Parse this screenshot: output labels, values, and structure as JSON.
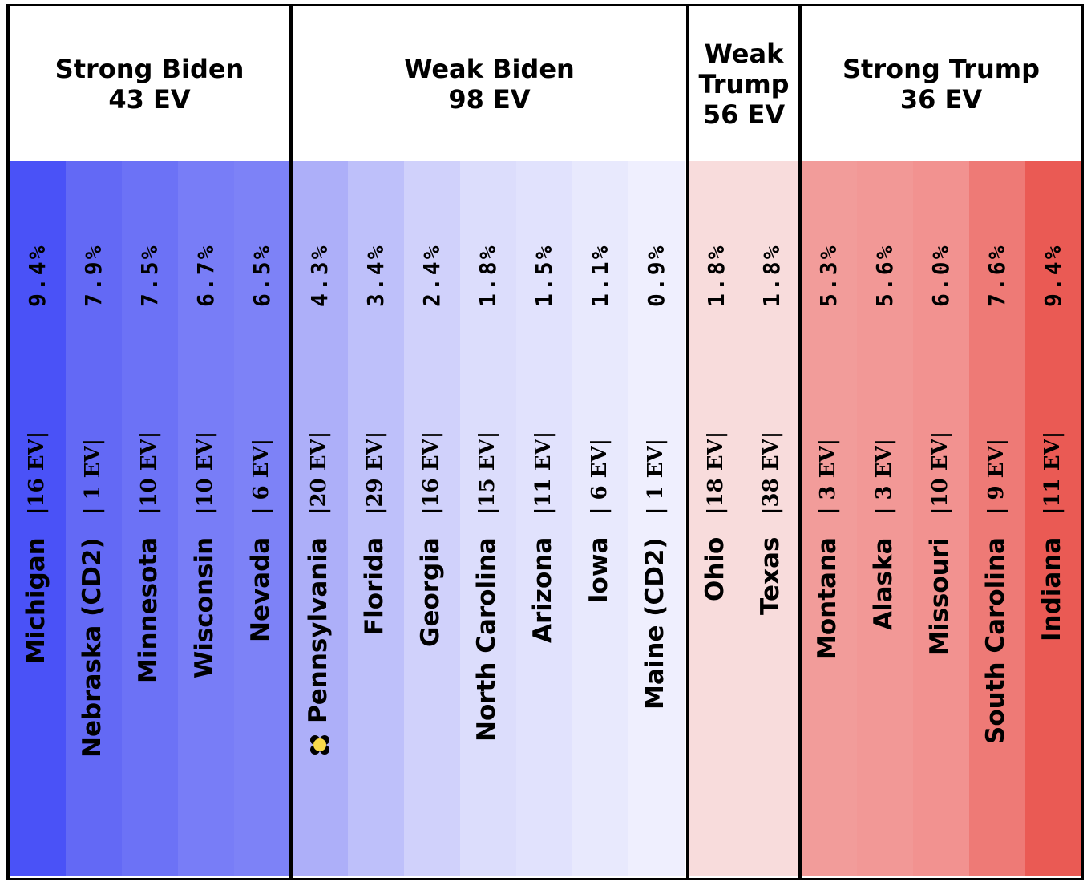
{
  "chart_data": {
    "type": "bar",
    "groups": [
      {
        "label": "Strong Biden",
        "ev_label": "43 EV",
        "states": [
          {
            "name": "Michigan",
            "ev": "16 EV",
            "margin": "9.4%",
            "margin_value": 9.4,
            "color": "#4a52f7"
          },
          {
            "name": "Nebraska (CD2)",
            "ev": " 1 EV",
            "margin": "7.9%",
            "margin_value": 7.9,
            "color": "#6369f5"
          },
          {
            "name": "Minnesota",
            "ev": "10 EV",
            "margin": "7.5%",
            "margin_value": 7.5,
            "color": "#6c72f6"
          },
          {
            "name": "Wisconsin",
            "ev": "10 EV",
            "margin": "6.7%",
            "margin_value": 6.7,
            "color": "#787df7"
          },
          {
            "name": "Nevada",
            "ev": " 6 EV",
            "margin": "6.5%",
            "margin_value": 6.5,
            "color": "#7d82f7"
          }
        ]
      },
      {
        "label": "Weak Biden",
        "ev_label": "98 EV",
        "states": [
          {
            "name": "Pennsylvania",
            "ev": "20 EV",
            "margin": "4.3%",
            "margin_value": 4.3,
            "color": "#adaff9",
            "tipping_point": true
          },
          {
            "name": "Florida",
            "ev": "29 EV",
            "margin": "3.4%",
            "margin_value": 3.4,
            "color": "#bec0fa"
          },
          {
            "name": "Georgia",
            "ev": "16 EV",
            "margin": "2.4%",
            "margin_value": 2.4,
            "color": "#d0d1fb"
          },
          {
            "name": "North Carolina",
            "ev": "15 EV",
            "margin": "1.8%",
            "margin_value": 1.8,
            "color": "#dcddfc"
          },
          {
            "name": "Arizona",
            "ev": "11 EV",
            "margin": "1.5%",
            "margin_value": 1.5,
            "color": "#e1e2fd"
          },
          {
            "name": "Iowa",
            "ev": " 6 EV",
            "margin": "1.1%",
            "margin_value": 1.1,
            "color": "#e8e9fd"
          },
          {
            "name": "Maine (CD2)",
            "ev": " 1 EV",
            "margin": "0.9%",
            "margin_value": 0.9,
            "color": "#efeffe"
          }
        ]
      },
      {
        "label": "Weak Trump",
        "ev_label": "56 EV",
        "states": [
          {
            "name": "Ohio",
            "ev": "18 EV",
            "margin": "1.8%",
            "margin_value": 1.8,
            "color": "#f8dcdc"
          },
          {
            "name": "Texas",
            "ev": "38 EV",
            "margin": "1.8%",
            "margin_value": 1.8,
            "color": "#f8dcdc"
          }
        ]
      },
      {
        "label": "Strong Trump",
        "ev_label": "36 EV",
        "states": [
          {
            "name": "Montana",
            "ev": " 3 EV",
            "margin": "5.3%",
            "margin_value": 5.3,
            "color": "#f29c9a"
          },
          {
            "name": "Alaska",
            "ev": " 3 EV",
            "margin": "5.6%",
            "margin_value": 5.6,
            "color": "#f29896"
          },
          {
            "name": "Missouri",
            "ev": "10 EV",
            "margin": "6.0%",
            "margin_value": 6.0,
            "color": "#f29290"
          },
          {
            "name": "South Carolina",
            "ev": " 9 EV",
            "margin": "7.6%",
            "margin_value": 7.6,
            "color": "#ee7a76"
          },
          {
            "name": "Indiana",
            "ev": "11 EV",
            "margin": "9.4%",
            "margin_value": 9.4,
            "color": "#ea5a54"
          }
        ]
      }
    ]
  },
  "colors": {
    "border": "#000000",
    "tipping_point_fill": "#f8d94a",
    "tipping_point_outline": "#000000"
  }
}
